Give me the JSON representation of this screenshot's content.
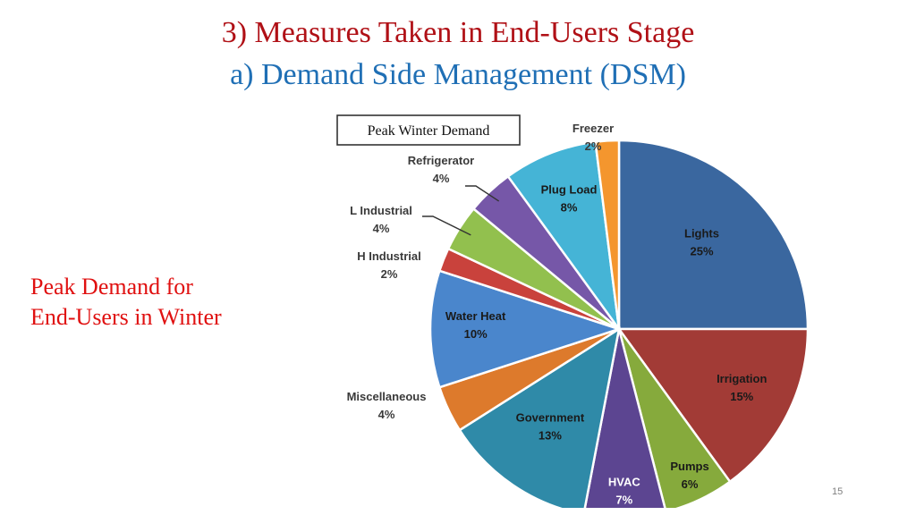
{
  "slide": {
    "title_line_1": "3) Measures Taken in End-Users Stage",
    "title_line_2": "a) Demand Side Management (DSM)",
    "caption_line_1": "Peak Demand for",
    "caption_line_2": "End-Users in Winter",
    "page_number": "15"
  },
  "chart_data": {
    "type": "pie",
    "title": "Peak Winter Demand",
    "slices": [
      {
        "name": "Lights",
        "value": 25,
        "label": "25%",
        "color": "#3a679f"
      },
      {
        "name": "Irrigation",
        "value": 15,
        "label": "15%",
        "color": "#a23b36"
      },
      {
        "name": "Pumps",
        "value": 6,
        "label": "6%",
        "color": "#86aa3c"
      },
      {
        "name": "HVAC",
        "value": 7,
        "label": "7%",
        "color": "#5c4591"
      },
      {
        "name": "Government",
        "value": 13,
        "label": "13%",
        "color": "#2f8aa8"
      },
      {
        "name": "Miscellaneous",
        "value": 4,
        "label": "4%",
        "color": "#dd7a2c"
      },
      {
        "name": "Water Heat",
        "value": 10,
        "label": "10%",
        "color": "#4a86cc"
      },
      {
        "name": "H Industrial",
        "value": 2,
        "label": "2%",
        "color": "#c9423c"
      },
      {
        "name": "L Industrial",
        "value": 4,
        "label": "4%",
        "color": "#92c04e"
      },
      {
        "name": "Refrigerator",
        "value": 4,
        "label": "4%",
        "color": "#7657a8"
      },
      {
        "name": "Plug Load",
        "value": 8,
        "label": "8%",
        "color": "#45b4d6"
      },
      {
        "name": "Freezer",
        "value": 2,
        "label": "2%",
        "color": "#f4962e"
      }
    ]
  }
}
